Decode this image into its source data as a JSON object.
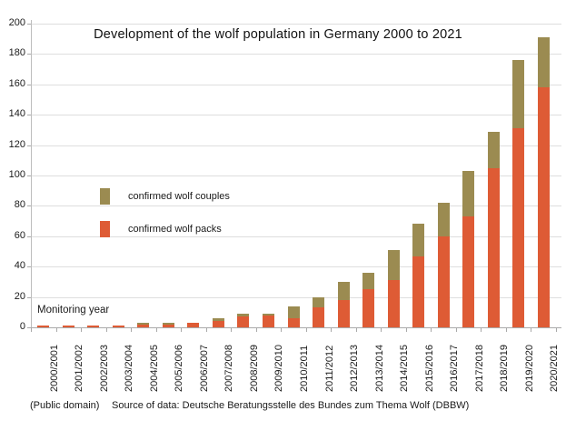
{
  "chart_data": {
    "type": "bar",
    "stacked": true,
    "title": "Development of the wolf population in Germany 2000 to 2021",
    "xlabel": "Monitoring year",
    "categories": [
      "2000/2001",
      "2001/2002",
      "2002/2003",
      "2003/2004",
      "2004/2005",
      "2005/2006",
      "2006/2007",
      "2007/2008",
      "2008/2009",
      "2009/2010",
      "2010/2011",
      "2011/2012",
      "2012/2013",
      "2013/2014",
      "2014/2015",
      "2015/2016",
      "2016/2017",
      "2017/2018",
      "2018/2019",
      "2019/2020",
      "2020/2021"
    ],
    "series": [
      {
        "name": "confirmed wolf packs",
        "color": "#de5b35",
        "values": [
          1,
          1,
          1,
          1,
          2,
          2,
          3,
          4,
          7,
          8,
          6,
          13,
          18,
          25,
          31,
          47,
          60,
          73,
          105,
          131,
          158
        ]
      },
      {
        "name": "confirmed wolf couples",
        "color": "#9b8b51",
        "values": [
          0,
          0,
          0,
          0,
          1,
          1,
          0,
          2,
          2,
          1,
          8,
          7,
          12,
          11,
          20,
          21,
          22,
          30,
          24,
          45,
          33
        ]
      }
    ],
    "legend": [
      {
        "label": "confirmed wolf couples",
        "color": "#9b8b51"
      },
      {
        "label": "confirmed wolf packs",
        "color": "#de5b35"
      }
    ],
    "ylim": [
      0,
      200
    ],
    "ytick_step": 20,
    "grid": true,
    "legend_position": "middle-left",
    "bar_color_packs": "#de5b35",
    "bar_color_couples": "#9b8b51"
  },
  "footer": {
    "license": "(Public domain)",
    "source": "Source of data: Deutsche Beratungsstelle des Bundes zum Thema Wolf (DBBW)"
  }
}
